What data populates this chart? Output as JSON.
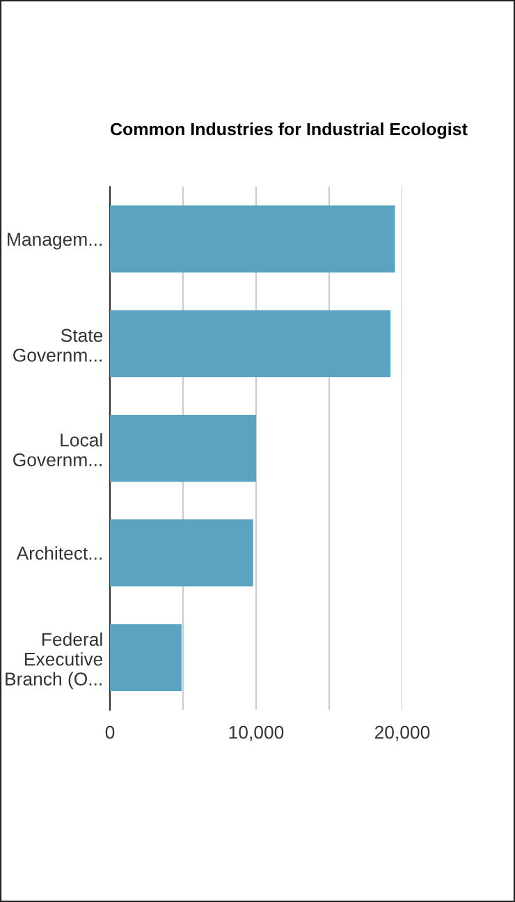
{
  "chart_data": {
    "type": "bar",
    "orientation": "horizontal",
    "title": "Common Industries for Industrial Ecologist",
    "categories": [
      "Managem...",
      "State\nGovernm...",
      "Local\nGovernm...",
      "Architect...",
      "Federal\nExecutive\nBranch (O..."
    ],
    "values": [
      19500,
      19200,
      10000,
      9800,
      4900
    ],
    "color": "#5ba3c1",
    "xlim": [
      0,
      20000
    ],
    "xticks": [
      0,
      {
        "value": 5000,
        "label": null
      },
      {
        "value": 10000,
        "label": "10,000"
      },
      {
        "value": 15000,
        "label": null
      },
      {
        "value": 20000,
        "label": "20,000"
      }
    ],
    "grid": "x",
    "legend": false
  }
}
